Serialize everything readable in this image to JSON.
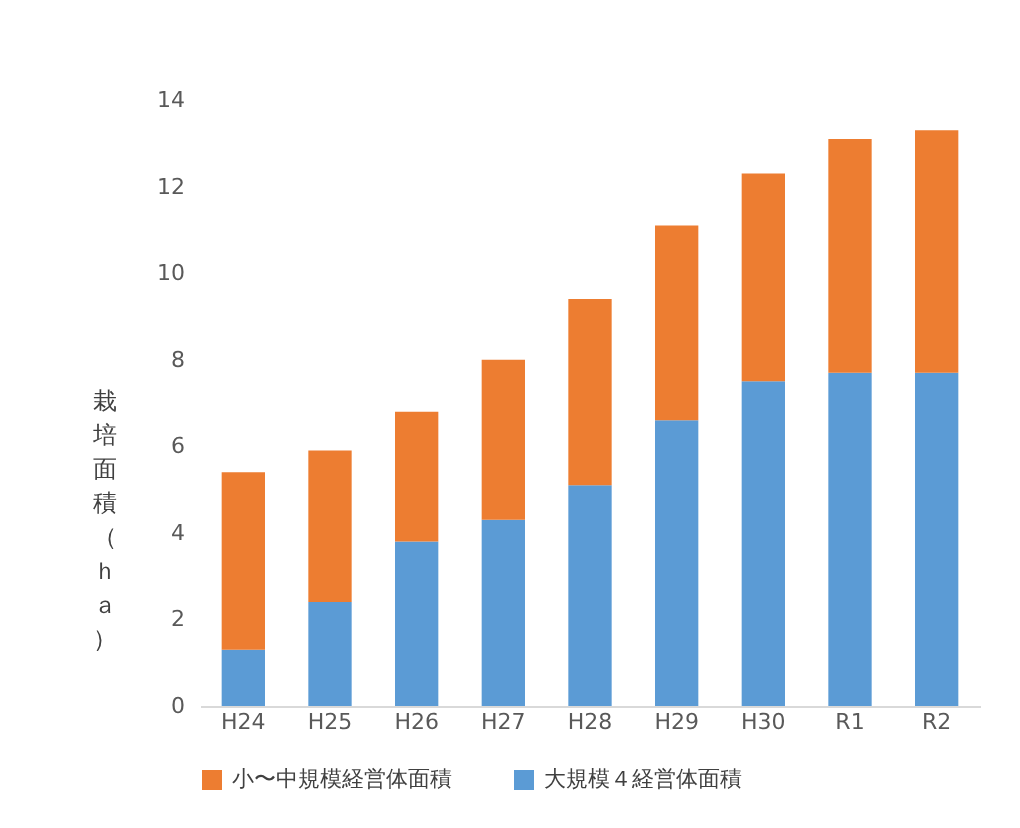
{
  "chart_data": {
    "type": "bar",
    "stacked": true,
    "ylabel": "栽培面積（ｈａ）",
    "categories": [
      "H24",
      "H25",
      "H26",
      "H27",
      "H28",
      "H29",
      "H30",
      "R1",
      "R2"
    ],
    "series": [
      {
        "name": "大規模４経営体面積",
        "color": "#5b9bd5",
        "values": [
          1.3,
          2.4,
          3.8,
          4.3,
          5.1,
          6.6,
          7.5,
          7.7,
          7.7
        ]
      },
      {
        "name": "小〜中規模経営体面積",
        "color": "#ed7d31",
        "values": [
          4.1,
          3.5,
          3.0,
          3.7,
          4.3,
          4.5,
          4.8,
          5.4,
          5.6
        ]
      }
    ],
    "ylim": [
      0,
      14
    ],
    "yticks": [
      0,
      2,
      4,
      6,
      8,
      10,
      12,
      14
    ],
    "legend": "bottom"
  }
}
